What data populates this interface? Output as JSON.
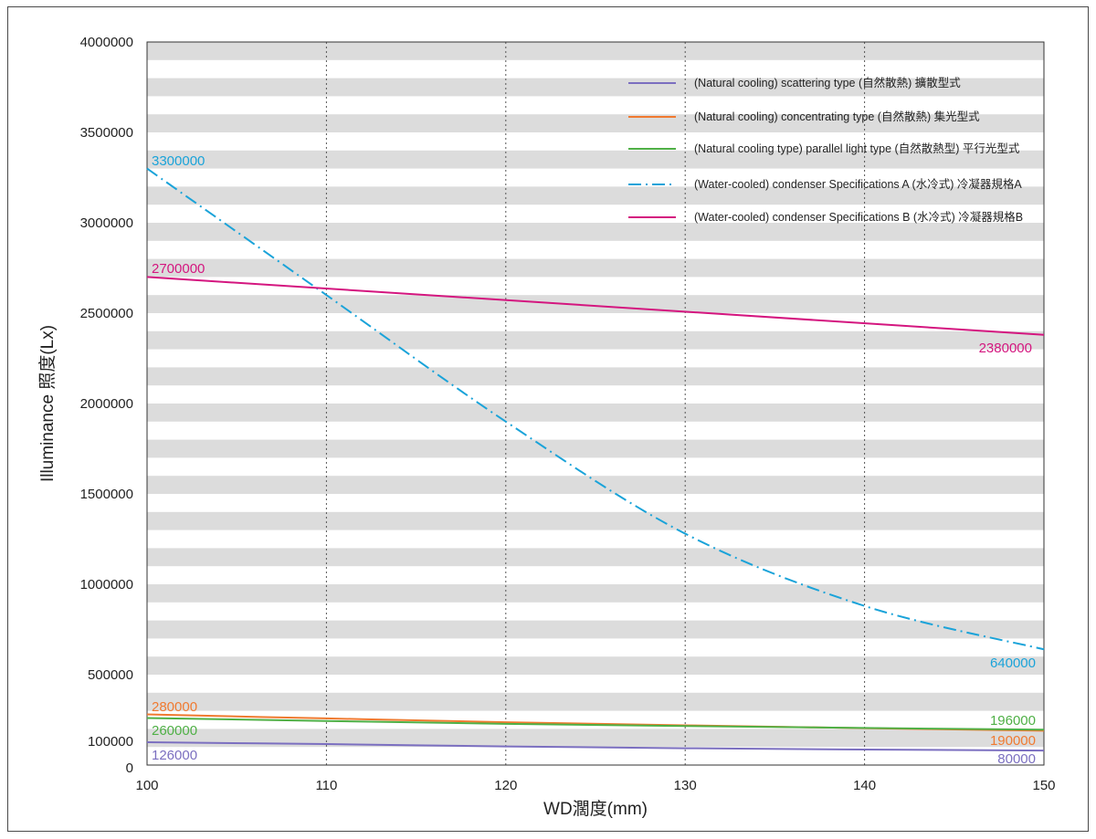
{
  "chart_data": {
    "type": "line",
    "title": "",
    "xlabel": "WD濶度(mm)",
    "ylabel": "Illuminance 照度(Lx)",
    "xlim": [
      100,
      150
    ],
    "ylim": [
      0,
      4000000
    ],
    "x_ticks": [
      "100",
      "110",
      "120",
      "130",
      "140",
      "150"
    ],
    "y_ticks": [
      {
        "value": 0,
        "label": "0"
      },
      {
        "value": 100000,
        "label": "100000"
      },
      {
        "value": 500000,
        "label": "500000"
      },
      {
        "value": 1000000,
        "label": "1000000"
      },
      {
        "value": 1500000,
        "label": "1500000"
      },
      {
        "value": 2000000,
        "label": "2000000"
      },
      {
        "value": 2500000,
        "label": "2500000"
      },
      {
        "value": 3000000,
        "label": "3000000"
      },
      {
        "value": 3500000,
        "label": "3500000"
      },
      {
        "value": 4000000,
        "label": "4000000"
      }
    ],
    "grid": "vertical dotted at x ticks; horizontal gray banding",
    "legend_position": "top-right",
    "series": [
      {
        "name": "(Natural cooling) scattering type (自然散熱) 擴散型式",
        "color": "#7b6fc0",
        "dash": "solid",
        "x": [
          100,
          110,
          120,
          130,
          140,
          150
        ],
        "y": [
          126000,
          116000,
          103000,
          93000,
          86000,
          80000
        ],
        "labels": [
          {
            "text": "126000",
            "at": "start"
          },
          {
            "text": "80000",
            "at": "end"
          }
        ]
      },
      {
        "name": "(Natural cooling) concentrating type (自然散熱) 集光型式",
        "color": "#f07a30",
        "dash": "solid",
        "x": [
          100,
          110,
          120,
          130,
          140,
          150
        ],
        "y": [
          280000,
          258000,
          237000,
          220000,
          204000,
          190000
        ],
        "labels": [
          {
            "text": "280000",
            "at": "start"
          },
          {
            "text": "190000",
            "at": "end"
          }
        ]
      },
      {
        "name": "(Natural cooling type) parallel light type (自然散熱型) 平行光型式",
        "color": "#4fb046",
        "dash": "solid",
        "x": [
          100,
          110,
          120,
          130,
          140,
          150
        ],
        "y": [
          260000,
          244000,
          228000,
          216000,
          205000,
          196000
        ],
        "labels": [
          {
            "text": "260000",
            "at": "start"
          },
          {
            "text": "196000",
            "at": "end"
          }
        ]
      },
      {
        "name": "(Water-cooled) condenser Specifications A (水冷式) 冷凝器規格A",
        "color": "#1aa3d9",
        "dash": "dashdot",
        "x": [
          100,
          110,
          120,
          130,
          140,
          150
        ],
        "y": [
          3300000,
          2600000,
          1900000,
          1280000,
          880000,
          640000
        ],
        "labels": [
          {
            "text": "3300000",
            "at": "start"
          },
          {
            "text": "640000",
            "at": "end"
          }
        ]
      },
      {
        "name": "(Water-cooled) condenser Specifications B (水冷式) 冷凝器規格B",
        "color": "#d4167f",
        "dash": "solid",
        "x": [
          100,
          150
        ],
        "y": [
          2700000,
          2380000
        ],
        "labels": [
          {
            "text": "2700000",
            "at": "start"
          },
          {
            "text": "2380000",
            "at": "end"
          }
        ]
      }
    ]
  }
}
